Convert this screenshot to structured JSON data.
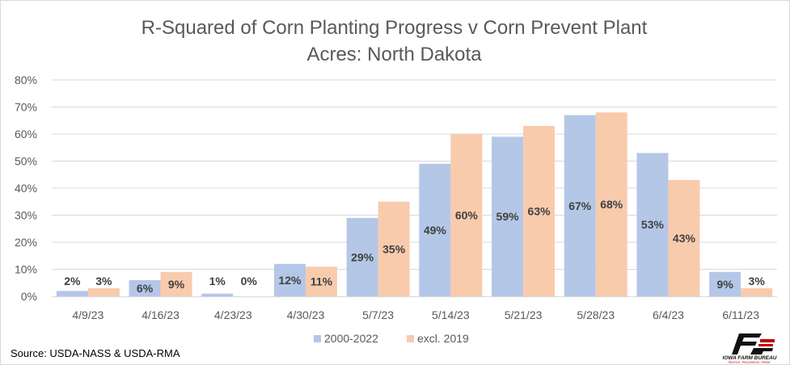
{
  "chart_data": {
    "type": "bar",
    "title_lines": [
      "R-Squared of Corn Planting Progress v Corn Prevent Plant",
      "Acres: North Dakota"
    ],
    "categories": [
      "4/9/23",
      "4/16/23",
      "4/23/23",
      "4/30/23",
      "5/7/23",
      "5/14/23",
      "5/21/23",
      "5/28/23",
      "6/4/23",
      "6/11/23"
    ],
    "series": [
      {
        "name": "2000-2022",
        "color": "#b4c7e7",
        "values": [
          2,
          6,
          1,
          12,
          29,
          49,
          59,
          67,
          53,
          9
        ],
        "labels": [
          "2%",
          "6%",
          "1%",
          "12%",
          "29%",
          "49%",
          "59%",
          "67%",
          "53%",
          "9%"
        ]
      },
      {
        "name": "excl. 2019",
        "color": "#f8cbad",
        "values": [
          3,
          9,
          0,
          11,
          35,
          60,
          63,
          68,
          43,
          3
        ],
        "labels": [
          "3%",
          "9%",
          "0%",
          "11%",
          "35%",
          "60%",
          "63%",
          "68%",
          "43%",
          "3%"
        ]
      }
    ],
    "y_ticks": [
      "0%",
      "10%",
      "20%",
      "30%",
      "40%",
      "50%",
      "60%",
      "70%",
      "80%"
    ],
    "ylim": [
      0,
      80
    ],
    "grid": true,
    "legend_position": "bottom"
  },
  "footer": {
    "source": "Source: USDA-NASS & USDA-RMA",
    "logo_text": "IOWA FARM BUREAU",
    "logo_tagline": "PEOPLE. PROGRESS. PRIDE."
  }
}
